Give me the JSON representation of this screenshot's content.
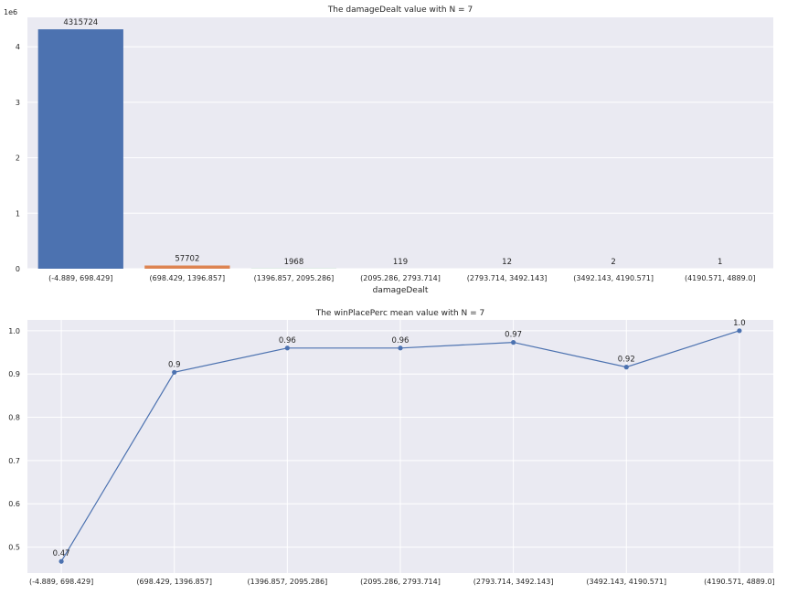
{
  "chart_data": [
    {
      "type": "bar",
      "title": "The damageDealt value with N = 7",
      "xlabel": "damageDealt",
      "ylabel": "",
      "y_offset_label": "1e6",
      "categories": [
        "(-4.889, 698.429]",
        "(698.429, 1396.857]",
        "(1396.857, 2095.286]",
        "(2095.286, 2793.714]",
        "(2793.714, 3492.143]",
        "(3492.143, 4190.571]",
        "(4190.571, 4889.0]"
      ],
      "values": [
        4315724,
        57702,
        1968,
        119,
        12,
        2,
        1
      ],
      "data_labels": [
        "4315724",
        "57702",
        "1968",
        "119",
        "12",
        "2",
        "1"
      ],
      "ylim": [
        0,
        4531010
      ],
      "yticks": [
        0,
        1000000,
        2000000,
        3000000,
        4000000
      ],
      "ytick_labels": [
        "0",
        "1",
        "2",
        "3",
        "4"
      ],
      "bar_colors": [
        "#4c72b0",
        "#dd8452",
        "#55a868",
        "#c44e52",
        "#8172b3",
        "#937860",
        "#da8bc3"
      ],
      "grid": true
    },
    {
      "type": "line",
      "title": "The winPlacePerc mean value with N = 7",
      "xlabel": "",
      "ylabel": "",
      "categories": [
        "(-4.889, 698.429]",
        "(698.429, 1396.857]",
        "(1396.857, 2095.286]",
        "(2095.286, 2793.714]",
        "(2793.714, 3492.143]",
        "(3492.143, 4190.571]",
        "(4190.571, 4889.0]"
      ],
      "values": [
        0.467,
        0.904,
        0.96,
        0.96,
        0.973,
        0.916,
        1.0
      ],
      "data_labels": [
        "0.47",
        "0.9",
        "0.96",
        "0.96",
        "0.97",
        "0.92",
        "1.0"
      ],
      "ylim": [
        0.44,
        1.025
      ],
      "yticks": [
        0.5,
        0.6,
        0.7,
        0.8,
        0.9,
        1.0
      ],
      "ytick_labels": [
        "0.5",
        "0.6",
        "0.7",
        "0.8",
        "0.9",
        "1.0"
      ],
      "line_color": "#4c72b0",
      "grid": true
    }
  ],
  "colors": {
    "axes_background": "#eaeaf2",
    "grid": "#ffffff",
    "text": "#262626"
  }
}
